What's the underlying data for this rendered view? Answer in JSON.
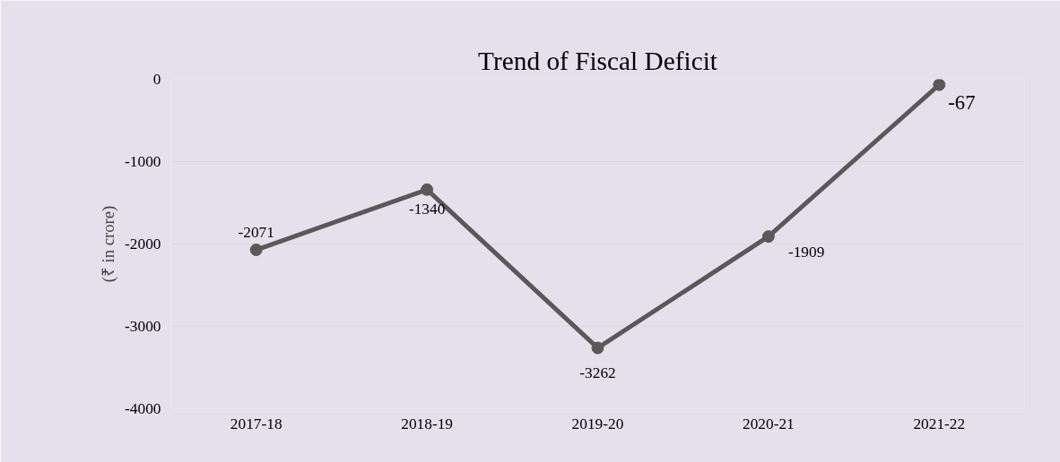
{
  "chart_data": {
    "type": "line",
    "title": "Trend of Fiscal Deficit",
    "ylabel": "(₹ in crore)",
    "categories": [
      "2017-18",
      "2018-19",
      "2019-20",
      "2020-21",
      "2021-22"
    ],
    "series": [
      {
        "color": "#595959",
        "values": [
          -2071,
          -1340,
          -3262,
          -1909,
          -67
        ]
      }
    ],
    "ylim": [
      -4000,
      0
    ],
    "yticks": [
      -4000,
      -3000,
      -2000,
      -1000,
      0
    ],
    "grid": "y",
    "marker": "circle",
    "line_style": "solid",
    "data_labels": true
  }
}
